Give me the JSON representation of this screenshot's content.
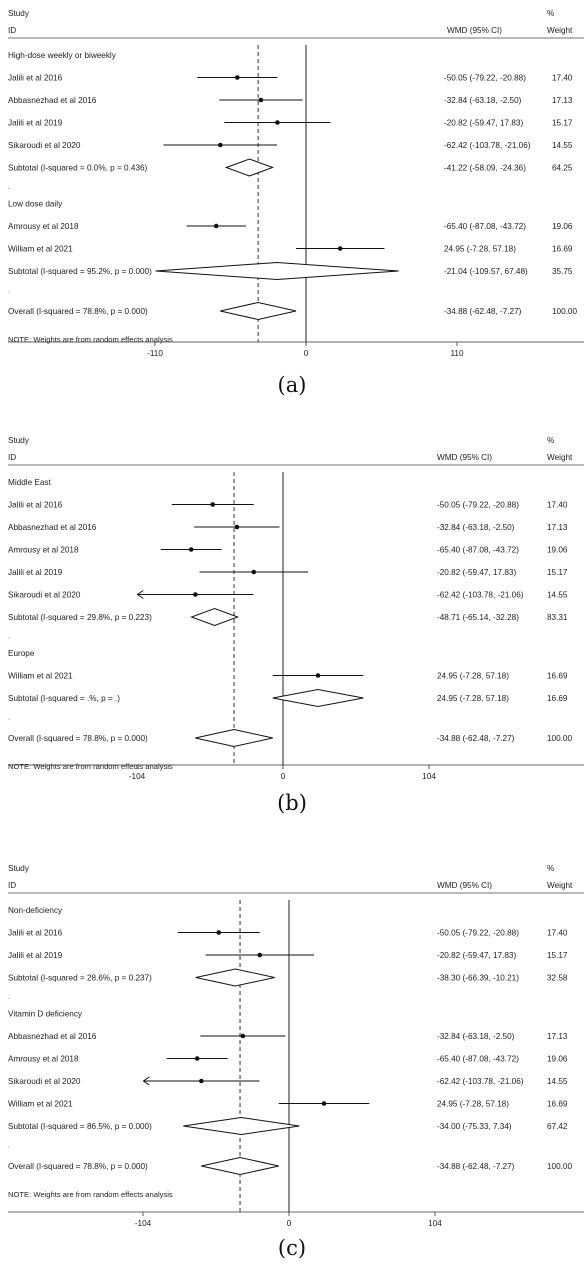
{
  "chart_data": [
    {
      "type": "forest",
      "panel_label": "(a)",
      "header": {
        "study": "Study",
        "id": "ID",
        "estimate": "WMD (95% CI)",
        "pct": "%",
        "weight": "Weight"
      },
      "axis": {
        "ticks": [
          -110,
          0,
          110
        ],
        "tick_labels": [
          "-110",
          "0",
          "110"
        ],
        "overall_line": -34.88
      },
      "note": "NOTE: Weights are from random effects analysis",
      "groups": [
        {
          "title": "High-dose weekly or biweekly",
          "studies": [
            {
              "name": "Jalili et al 2016",
              "est": -50.05,
              "lo": -79.22,
              "hi": -20.88,
              "ci_text": "-50.05 (-79.22, -20.88)",
              "weight": "17.40"
            },
            {
              "name": "Abbasnezhad et al 2016",
              "est": -32.84,
              "lo": -63.18,
              "hi": -2.5,
              "ci_text": "-32.84 (-63.18, -2.50)",
              "weight": "17.13"
            },
            {
              "name": "Jalili et al 2019",
              "est": -20.82,
              "lo": -59.47,
              "hi": 17.83,
              "ci_text": "-20.82 (-59.47, 17.83)",
              "weight": "15.17"
            },
            {
              "name": "Sikaroudi et al 2020",
              "est": -62.42,
              "lo": -103.78,
              "hi": -21.06,
              "ci_text": "-62.42 (-103.78, -21.06)",
              "weight": "14.55"
            }
          ],
          "subtotal": {
            "label": "Subtotal  (I-squared = 0.0%, p = 0.436)",
            "est": -41.22,
            "lo": -58.09,
            "hi": -24.36,
            "ci_text": "-41.22 (-58.09, -24.36)",
            "weight": "64.25"
          }
        },
        {
          "title": "Low dose daily",
          "studies": [
            {
              "name": "Amrousy et al 2018",
              "est": -65.4,
              "lo": -87.08,
              "hi": -43.72,
              "ci_text": "-65.40 (-87.08, -43.72)",
              "weight": "19.06"
            },
            {
              "name": "William et al 2021",
              "est": 24.95,
              "lo": -7.28,
              "hi": 57.18,
              "ci_text": "24.95 (-7.28, 57.18)",
              "weight": "16.69"
            }
          ],
          "subtotal": {
            "label": "Subtotal  (I-squared = 95.2%, p = 0.000)",
            "est": -21.04,
            "lo": -109.57,
            "hi": 67.48,
            "ci_text": "-21.04 (-109.57, 67.48)",
            "weight": "35.75"
          }
        }
      ],
      "overall": {
        "label": "Overall  (I-squared = 78.8%, p = 0.000)",
        "est": -34.88,
        "lo": -62.48,
        "hi": -7.27,
        "ci_text": "-34.88 (-62.48, -7.27)",
        "weight": "100.00"
      }
    },
    {
      "type": "forest",
      "panel_label": "(b)",
      "header": {
        "study": "Study",
        "id": "ID",
        "estimate": "WMD (95% CI)",
        "pct": "%",
        "weight": "Weight"
      },
      "axis": {
        "ticks": [
          -104,
          0,
          104
        ],
        "tick_labels": [
          "-104",
          "0",
          "104"
        ],
        "overall_line": -34.88
      },
      "note": "NOTE: Weights are from random effects analysis",
      "groups": [
        {
          "title": "Middle East",
          "studies": [
            {
              "name": "Jalili et al 2016",
              "est": -50.05,
              "lo": -79.22,
              "hi": -20.88,
              "ci_text": "-50.05 (-79.22, -20.88)",
              "weight": "17.40"
            },
            {
              "name": "Abbasnezhad et al 2016",
              "est": -32.84,
              "lo": -63.18,
              "hi": -2.5,
              "ci_text": "-32.84 (-63.18, -2.50)",
              "weight": "17.13"
            },
            {
              "name": "Amrousy et al 2018",
              "est": -65.4,
              "lo": -87.08,
              "hi": -43.72,
              "ci_text": "-65.40 (-87.08, -43.72)",
              "weight": "19.06"
            },
            {
              "name": "Jalili et al 2019",
              "est": -20.82,
              "lo": -59.47,
              "hi": 17.83,
              "ci_text": "-20.82 (-59.47, 17.83)",
              "weight": "15.17"
            },
            {
              "name": "Sikaroudi et al 2020",
              "est": -62.42,
              "lo": -103.78,
              "hi": -21.06,
              "ci_text": "-62.42 (-103.78, -21.06)",
              "weight": "14.55",
              "arrow_left": true
            }
          ],
          "subtotal": {
            "label": "Subtotal  (I-squared = 29.8%, p = 0.223)",
            "est": -48.71,
            "lo": -65.14,
            "hi": -32.28,
            "ci_text": "-48.71 (-65.14, -32.28)",
            "weight": "83.31"
          }
        },
        {
          "title": "Europe",
          "studies": [
            {
              "name": "William et al 2021",
              "est": 24.95,
              "lo": -7.28,
              "hi": 57.18,
              "ci_text": "24.95 (-7.28, 57.18)",
              "weight": "16.69"
            }
          ],
          "subtotal": {
            "label": "Subtotal  (I-squared = .%, p = .)",
            "est": 24.95,
            "lo": -7.28,
            "hi": 57.18,
            "ci_text": "24.95 (-7.28, 57.18)",
            "weight": "16.69"
          }
        }
      ],
      "overall": {
        "label": "Overall  (I-squared = 78.8%, p = 0.000)",
        "est": -34.88,
        "lo": -62.48,
        "hi": -7.27,
        "ci_text": "-34.88 (-62.48, -7.27)",
        "weight": "100.00"
      }
    },
    {
      "type": "forest",
      "panel_label": "(c)",
      "header": {
        "study": "Study",
        "id": "ID",
        "estimate": "WMD (95% CI)",
        "pct": "%",
        "weight": "Weight"
      },
      "axis": {
        "ticks": [
          -104,
          0,
          104
        ],
        "tick_labels": [
          "-104",
          "0",
          "104"
        ],
        "overall_line": -34.88
      },
      "note": "NOTE: Weights are from random effects analysis",
      "groups": [
        {
          "title": "Non-deficiency",
          "studies": [
            {
              "name": "Jalili et al 2016",
              "est": -50.05,
              "lo": -79.22,
              "hi": -20.88,
              "ci_text": "-50.05 (-79.22, -20.88)",
              "weight": "17.40"
            },
            {
              "name": "Jalili et al 2019",
              "est": -20.82,
              "lo": -59.47,
              "hi": 17.83,
              "ci_text": "-20.82 (-59.47, 17.83)",
              "weight": "15.17"
            }
          ],
          "subtotal": {
            "label": "Subtotal  (I-squared = 28.6%, p = 0.237)",
            "est": -38.3,
            "lo": -66.39,
            "hi": -10.21,
            "ci_text": "-38.30 (-66.39, -10.21)",
            "weight": "32.58"
          }
        },
        {
          "title": "Vitamin D deficiency",
          "studies": [
            {
              "name": "Abbasnezhad et al 2016",
              "est": -32.84,
              "lo": -63.18,
              "hi": -2.5,
              "ci_text": "-32.84 (-63.18, -2.50)",
              "weight": "17.13"
            },
            {
              "name": "Amrousy et al 2018",
              "est": -65.4,
              "lo": -87.08,
              "hi": -43.72,
              "ci_text": "-65.40 (-87.08, -43.72)",
              "weight": "19.06"
            },
            {
              "name": "Sikaroudi et al 2020",
              "est": -62.42,
              "lo": -103.78,
              "hi": -21.06,
              "ci_text": "-62.42 (-103.78, -21.06)",
              "weight": "14.55",
              "arrow_left": true
            },
            {
              "name": "William et al 2021",
              "est": 24.95,
              "lo": -7.28,
              "hi": 57.18,
              "ci_text": "24.95 (-7.28, 57.18)",
              "weight": "16.69"
            }
          ],
          "subtotal": {
            "label": "Subtotal  (I-squared = 86.5%, p = 0.000)",
            "est": -34.0,
            "lo": -75.33,
            "hi": 7.34,
            "ci_text": "-34.00 (-75.33, 7.34)",
            "weight": "67.42"
          }
        }
      ],
      "overall": {
        "label": "Overall  (I-squared = 78.8%, p = 0.000)",
        "est": -34.88,
        "lo": -62.48,
        "hi": -7.27,
        "ci_text": "-34.88 (-62.48, -7.27)",
        "weight": "100.00"
      }
    }
  ]
}
